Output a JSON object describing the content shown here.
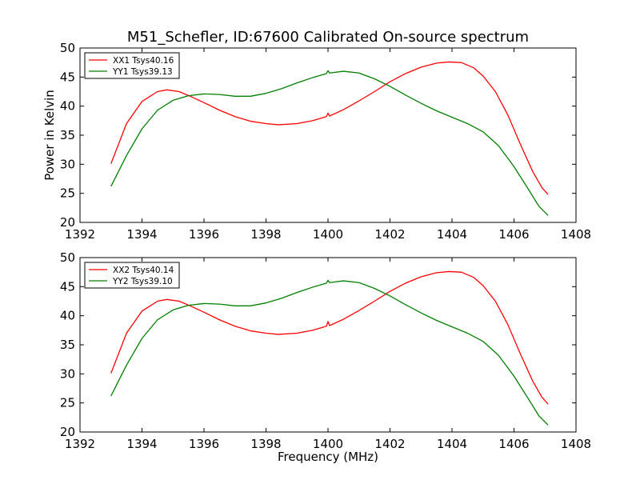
{
  "chart_data": [
    {
      "type": "line",
      "title": "M51_Schefler, ID:67600 Calibrated On-source spectrum",
      "xlabel": "",
      "ylabel": "Power in Kelvin",
      "xlim": [
        1392,
        1408
      ],
      "ylim": [
        20,
        50
      ],
      "xticks": [
        1392,
        1394,
        1396,
        1398,
        1400,
        1402,
        1404,
        1406,
        1408
      ],
      "yticks": [
        20,
        25,
        30,
        35,
        40,
        45,
        50
      ],
      "legend_position": "top-left",
      "grid": false,
      "series": [
        {
          "name": "XX1 Tsys40.16",
          "color": "#ff0000",
          "points": [
            [
              1393.0,
              30.1
            ],
            [
              1393.5,
              37.0
            ],
            [
              1394.0,
              40.8
            ],
            [
              1394.5,
              42.5
            ],
            [
              1394.8,
              42.8
            ],
            [
              1395.2,
              42.5
            ],
            [
              1395.6,
              41.6
            ],
            [
              1396.0,
              40.6
            ],
            [
              1396.5,
              39.3
            ],
            [
              1397.0,
              38.2
            ],
            [
              1397.5,
              37.4
            ],
            [
              1398.0,
              37.0
            ],
            [
              1398.4,
              36.8
            ],
            [
              1399.0,
              37.0
            ],
            [
              1399.5,
              37.5
            ],
            [
              1399.95,
              38.2
            ],
            [
              1400.0,
              38.8
            ],
            [
              1400.05,
              38.3
            ],
            [
              1400.5,
              39.4
            ],
            [
              1401.0,
              40.9
            ],
            [
              1401.5,
              42.5
            ],
            [
              1402.0,
              44.2
            ],
            [
              1402.5,
              45.6
            ],
            [
              1403.0,
              46.7
            ],
            [
              1403.5,
              47.4
            ],
            [
              1403.9,
              47.6
            ],
            [
              1404.3,
              47.5
            ],
            [
              1404.7,
              46.6
            ],
            [
              1405.0,
              45.2
            ],
            [
              1405.4,
              42.5
            ],
            [
              1405.8,
              38.5
            ],
            [
              1406.2,
              33.5
            ],
            [
              1406.6,
              28.8
            ],
            [
              1406.9,
              26.0
            ],
            [
              1407.1,
              24.8
            ]
          ]
        },
        {
          "name": "YY1 Tsys39.13",
          "color": "#008000",
          "points": [
            [
              1393.0,
              26.2
            ],
            [
              1393.5,
              31.5
            ],
            [
              1394.0,
              36.1
            ],
            [
              1394.5,
              39.3
            ],
            [
              1395.0,
              41.0
            ],
            [
              1395.5,
              41.8
            ],
            [
              1396.0,
              42.1
            ],
            [
              1396.5,
              42.0
            ],
            [
              1397.0,
              41.7
            ],
            [
              1397.5,
              41.7
            ],
            [
              1398.0,
              42.2
            ],
            [
              1398.5,
              43.0
            ],
            [
              1399.0,
              44.0
            ],
            [
              1399.5,
              44.9
            ],
            [
              1399.95,
              45.6
            ],
            [
              1400.0,
              46.1
            ],
            [
              1400.05,
              45.7
            ],
            [
              1400.5,
              46.0
            ],
            [
              1401.0,
              45.7
            ],
            [
              1401.5,
              44.7
            ],
            [
              1402.0,
              43.4
            ],
            [
              1402.5,
              41.9
            ],
            [
              1403.0,
              40.5
            ],
            [
              1403.5,
              39.2
            ],
            [
              1404.0,
              38.1
            ],
            [
              1404.5,
              37.0
            ],
            [
              1405.0,
              35.6
            ],
            [
              1405.5,
              33.2
            ],
            [
              1406.0,
              29.6
            ],
            [
              1406.5,
              25.4
            ],
            [
              1406.8,
              22.8
            ],
            [
              1407.1,
              21.2
            ]
          ]
        }
      ]
    },
    {
      "type": "line",
      "title": "",
      "xlabel": "Frequency (MHz)",
      "ylabel": "",
      "xlim": [
        1392,
        1408
      ],
      "ylim": [
        20,
        50
      ],
      "xticks": [
        1392,
        1394,
        1396,
        1398,
        1400,
        1402,
        1404,
        1406,
        1408
      ],
      "yticks": [
        20,
        25,
        30,
        35,
        40,
        45,
        50
      ],
      "legend_position": "top-left",
      "grid": false,
      "series": [
        {
          "name": "XX2 Tsys40.14",
          "color": "#ff0000",
          "points": [
            [
              1393.0,
              30.1
            ],
            [
              1393.5,
              37.0
            ],
            [
              1394.0,
              40.8
            ],
            [
              1394.5,
              42.5
            ],
            [
              1394.8,
              42.8
            ],
            [
              1395.2,
              42.5
            ],
            [
              1395.6,
              41.6
            ],
            [
              1396.0,
              40.6
            ],
            [
              1396.5,
              39.3
            ],
            [
              1397.0,
              38.2
            ],
            [
              1397.5,
              37.4
            ],
            [
              1398.0,
              37.0
            ],
            [
              1398.4,
              36.8
            ],
            [
              1399.0,
              37.0
            ],
            [
              1399.5,
              37.5
            ],
            [
              1399.95,
              38.2
            ],
            [
              1400.0,
              39.0
            ],
            [
              1400.05,
              38.3
            ],
            [
              1400.5,
              39.4
            ],
            [
              1401.0,
              40.9
            ],
            [
              1401.5,
              42.5
            ],
            [
              1402.0,
              44.2
            ],
            [
              1402.5,
              45.6
            ],
            [
              1403.0,
              46.7
            ],
            [
              1403.5,
              47.4
            ],
            [
              1403.9,
              47.6
            ],
            [
              1404.3,
              47.5
            ],
            [
              1404.7,
              46.6
            ],
            [
              1405.0,
              45.2
            ],
            [
              1405.4,
              42.5
            ],
            [
              1405.8,
              38.5
            ],
            [
              1406.2,
              33.5
            ],
            [
              1406.6,
              28.8
            ],
            [
              1406.9,
              26.0
            ],
            [
              1407.1,
              24.8
            ]
          ]
        },
        {
          "name": "YY2 Tsys39.10",
          "color": "#008000",
          "points": [
            [
              1393.0,
              26.2
            ],
            [
              1393.5,
              31.5
            ],
            [
              1394.0,
              36.1
            ],
            [
              1394.5,
              39.3
            ],
            [
              1395.0,
              41.0
            ],
            [
              1395.5,
              41.8
            ],
            [
              1396.0,
              42.1
            ],
            [
              1396.5,
              42.0
            ],
            [
              1397.0,
              41.7
            ],
            [
              1397.5,
              41.7
            ],
            [
              1398.0,
              42.2
            ],
            [
              1398.5,
              43.0
            ],
            [
              1399.0,
              44.0
            ],
            [
              1399.5,
              44.9
            ],
            [
              1399.95,
              45.6
            ],
            [
              1400.0,
              46.1
            ],
            [
              1400.05,
              45.7
            ],
            [
              1400.5,
              46.0
            ],
            [
              1401.0,
              45.7
            ],
            [
              1401.5,
              44.7
            ],
            [
              1402.0,
              43.4
            ],
            [
              1402.5,
              41.9
            ],
            [
              1403.0,
              40.5
            ],
            [
              1403.5,
              39.2
            ],
            [
              1404.0,
              38.1
            ],
            [
              1404.5,
              37.0
            ],
            [
              1405.0,
              35.6
            ],
            [
              1405.5,
              33.2
            ],
            [
              1406.0,
              29.6
            ],
            [
              1406.5,
              25.4
            ],
            [
              1406.8,
              22.8
            ],
            [
              1407.1,
              21.2
            ]
          ]
        }
      ]
    }
  ]
}
